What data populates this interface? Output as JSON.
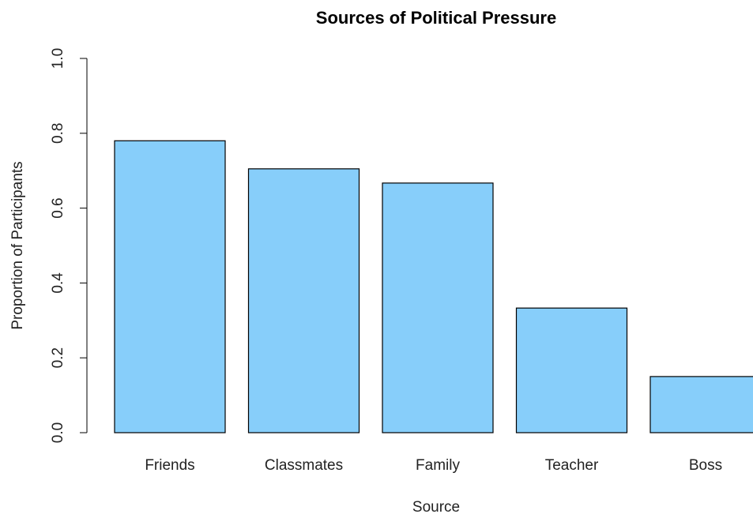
{
  "chart_data": {
    "type": "bar",
    "title": "Sources of Political Pressure",
    "xlabel": "Source",
    "ylabel": "Proportion of Participants",
    "categories": [
      "Friends",
      "Classmates",
      "Family",
      "Teacher",
      "Boss"
    ],
    "values": [
      0.78,
      0.705,
      0.667,
      0.333,
      0.15
    ],
    "ylim": [
      0,
      1.0
    ],
    "yticks": [
      "0.0",
      "0.2",
      "0.4",
      "0.6",
      "0.8",
      "1.0"
    ],
    "grid": false,
    "legend": "none",
    "bar_color": "#87CEFA",
    "bar_border_color": "#000000"
  }
}
